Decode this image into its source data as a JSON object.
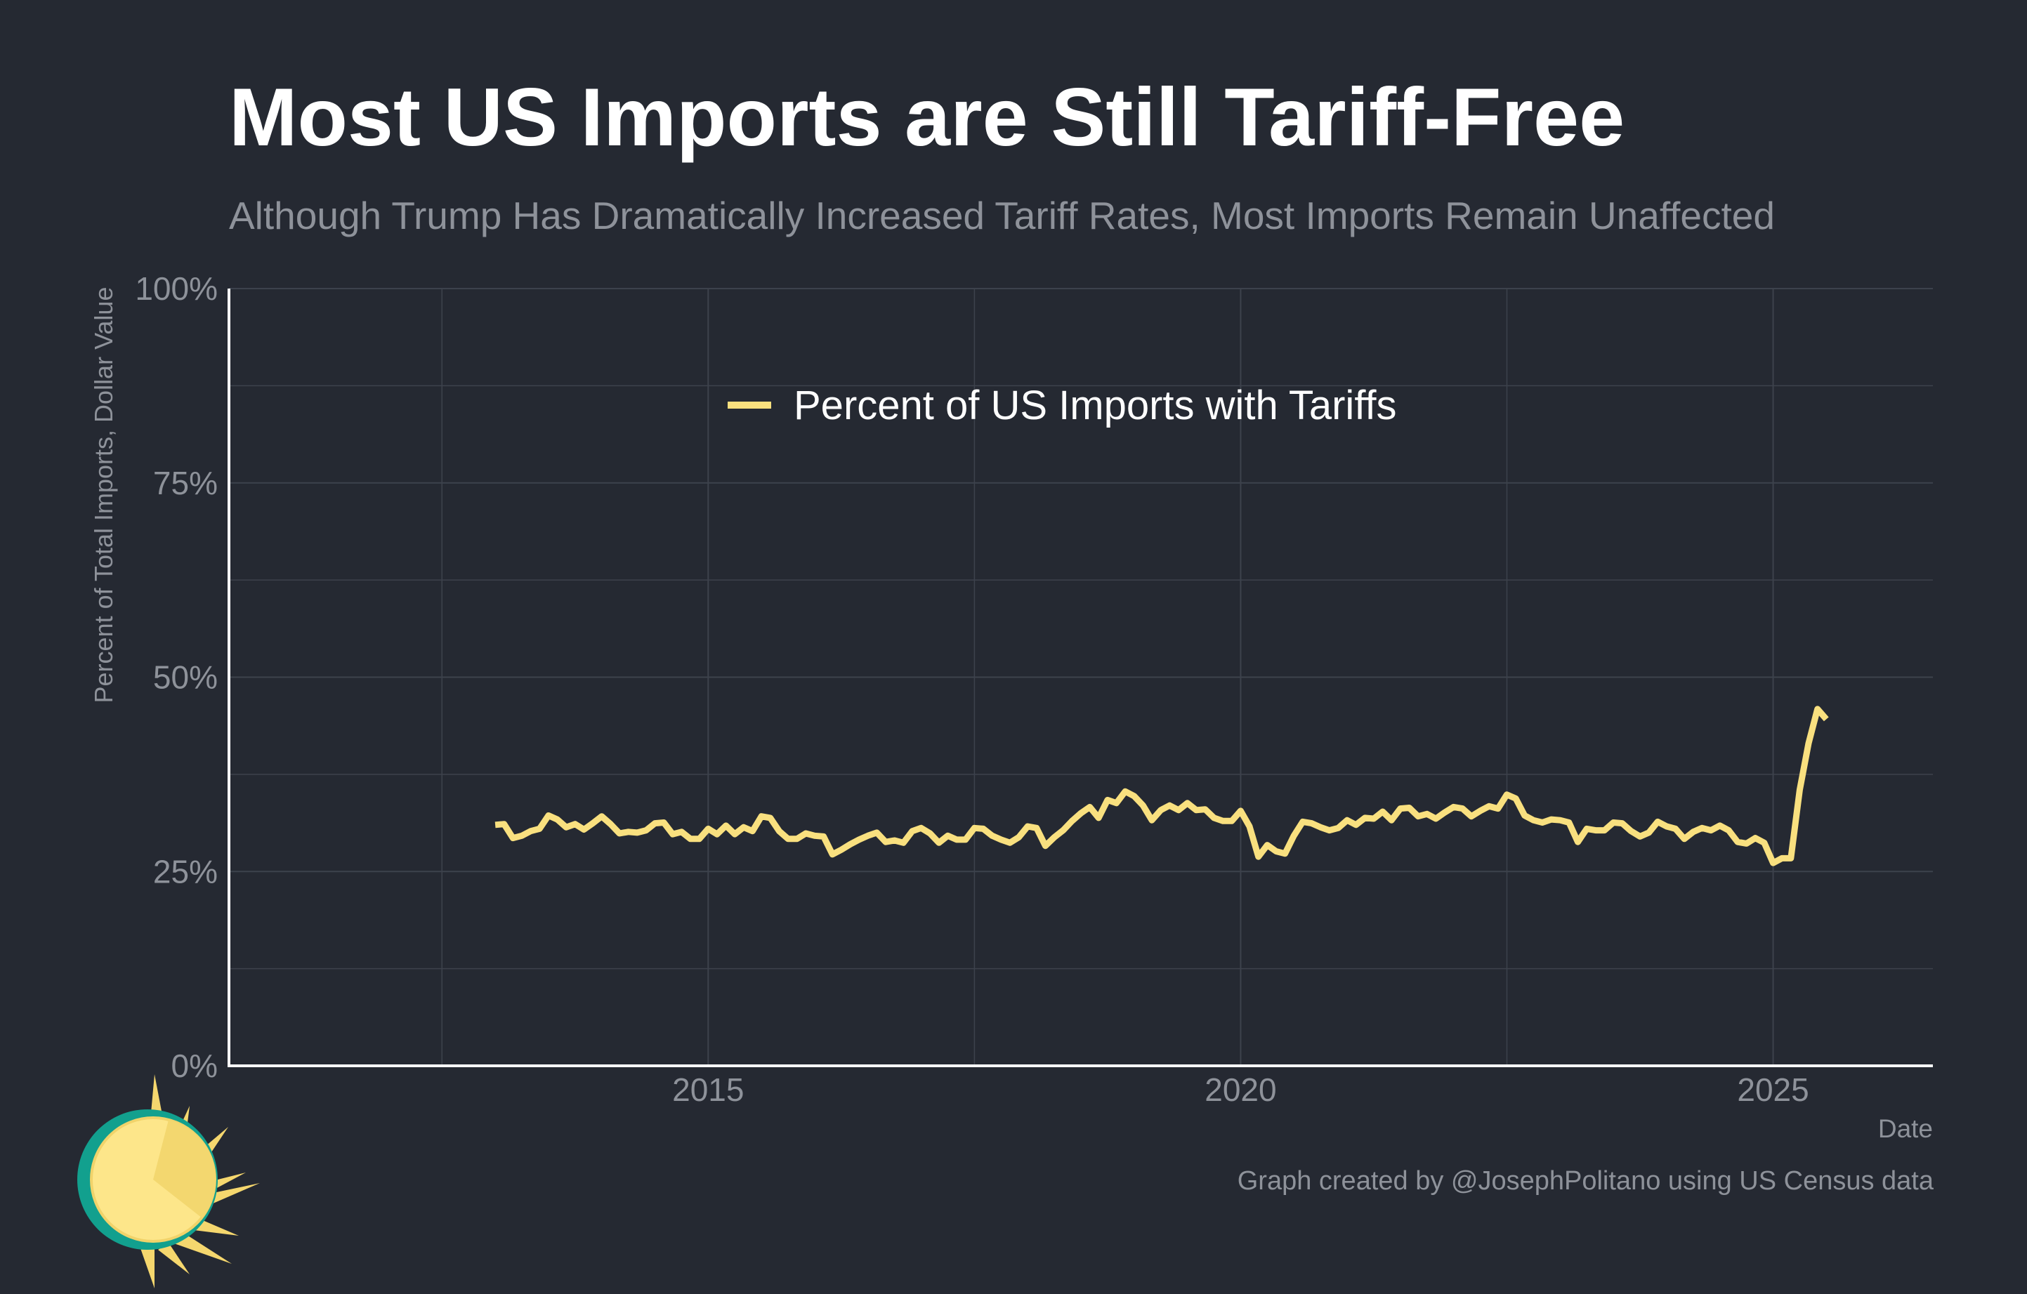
{
  "header": {
    "title": "Most US Imports are Still Tariff-Free",
    "subtitle": "Although Trump Has Dramatically Increased Tariff Rates, Most Imports Remain Unaffected"
  },
  "footer": {
    "caption": "Graph created by @JosephPolitano using US Census data"
  },
  "logo": {
    "icon": "sun-logo-icon",
    "colors": {
      "ring": "#12a08e",
      "face": "#fde68a",
      "rays": "#f5d76e"
    }
  },
  "colors": {
    "background": "#252932",
    "line": "#f9e07f",
    "grid": "#3d424c",
    "axis": "#ffffff",
    "muted_text": "#8e929a"
  },
  "chart_data": {
    "type": "line",
    "title": "Most US Imports are Still Tariff-Free",
    "subtitle": "Although Trump Has Dramatically Increased Tariff Rates, Most Imports Remain Unaffected",
    "xlabel": "Date",
    "ylabel": "Percent of Total Imports, Dollar Value",
    "xlim": [
      2010.5,
      2026.5
    ],
    "ylim": [
      0,
      100
    ],
    "x_ticks": [
      2015,
      2020,
      2025
    ],
    "x_tick_labels": [
      "2015",
      "2020",
      "2025"
    ],
    "y_ticks": [
      0,
      25,
      50,
      75,
      100
    ],
    "y_tick_labels": [
      "0%",
      "25%",
      "50%",
      "75%",
      "100%"
    ],
    "grid": true,
    "legend_position": "top-center",
    "series": [
      {
        "name": "Percent of US Imports with Tariffs",
        "color": "#f9e07f",
        "x_start": 2013.0,
        "x_step": 0.08333,
        "values": [
          31.0,
          31.1,
          29.3,
          29.6,
          30.2,
          30.5,
          32.2,
          31.7,
          30.7,
          31.1,
          30.4,
          31.2,
          32.1,
          31.1,
          29.9,
          30.1,
          30.0,
          30.3,
          31.2,
          31.3,
          29.8,
          30.1,
          29.2,
          29.2,
          30.5,
          29.8,
          30.9,
          29.8,
          30.7,
          30.2,
          32.1,
          31.9,
          30.2,
          29.2,
          29.2,
          29.9,
          29.6,
          29.5,
          27.2,
          27.8,
          28.5,
          29.1,
          29.6,
          30.0,
          28.8,
          29.0,
          28.7,
          30.2,
          30.6,
          29.9,
          28.7,
          29.6,
          29.1,
          29.1,
          30.6,
          30.5,
          29.6,
          29.1,
          28.7,
          29.4,
          30.8,
          30.6,
          28.3,
          29.4,
          30.3,
          31.5,
          32.5,
          33.3,
          31.9,
          34.2,
          33.8,
          35.3,
          34.7,
          33.5,
          31.6,
          32.9,
          33.5,
          32.9,
          33.8,
          32.9,
          33.0,
          31.9,
          31.5,
          31.5,
          32.8,
          30.8,
          26.9,
          28.4,
          27.6,
          27.3,
          29.6,
          31.4,
          31.2,
          30.7,
          30.3,
          30.6,
          31.6,
          31.0,
          31.9,
          31.8,
          32.7,
          31.6,
          33.1,
          33.2,
          32.1,
          32.4,
          31.8,
          32.6,
          33.3,
          33.1,
          32.1,
          32.8,
          33.4,
          33.1,
          34.9,
          34.4,
          32.2,
          31.6,
          31.3,
          31.7,
          31.6,
          31.3,
          28.8,
          30.5,
          30.3,
          30.3,
          31.3,
          31.2,
          30.2,
          29.5,
          30.0,
          31.4,
          30.8,
          30.5,
          29.2,
          30.1,
          30.6,
          30.3,
          30.9,
          30.3,
          28.8,
          28.6,
          29.3,
          28.7,
          26.1,
          26.7,
          26.7,
          35.5,
          41.5,
          45.9,
          44.6
        ]
      }
    ]
  }
}
